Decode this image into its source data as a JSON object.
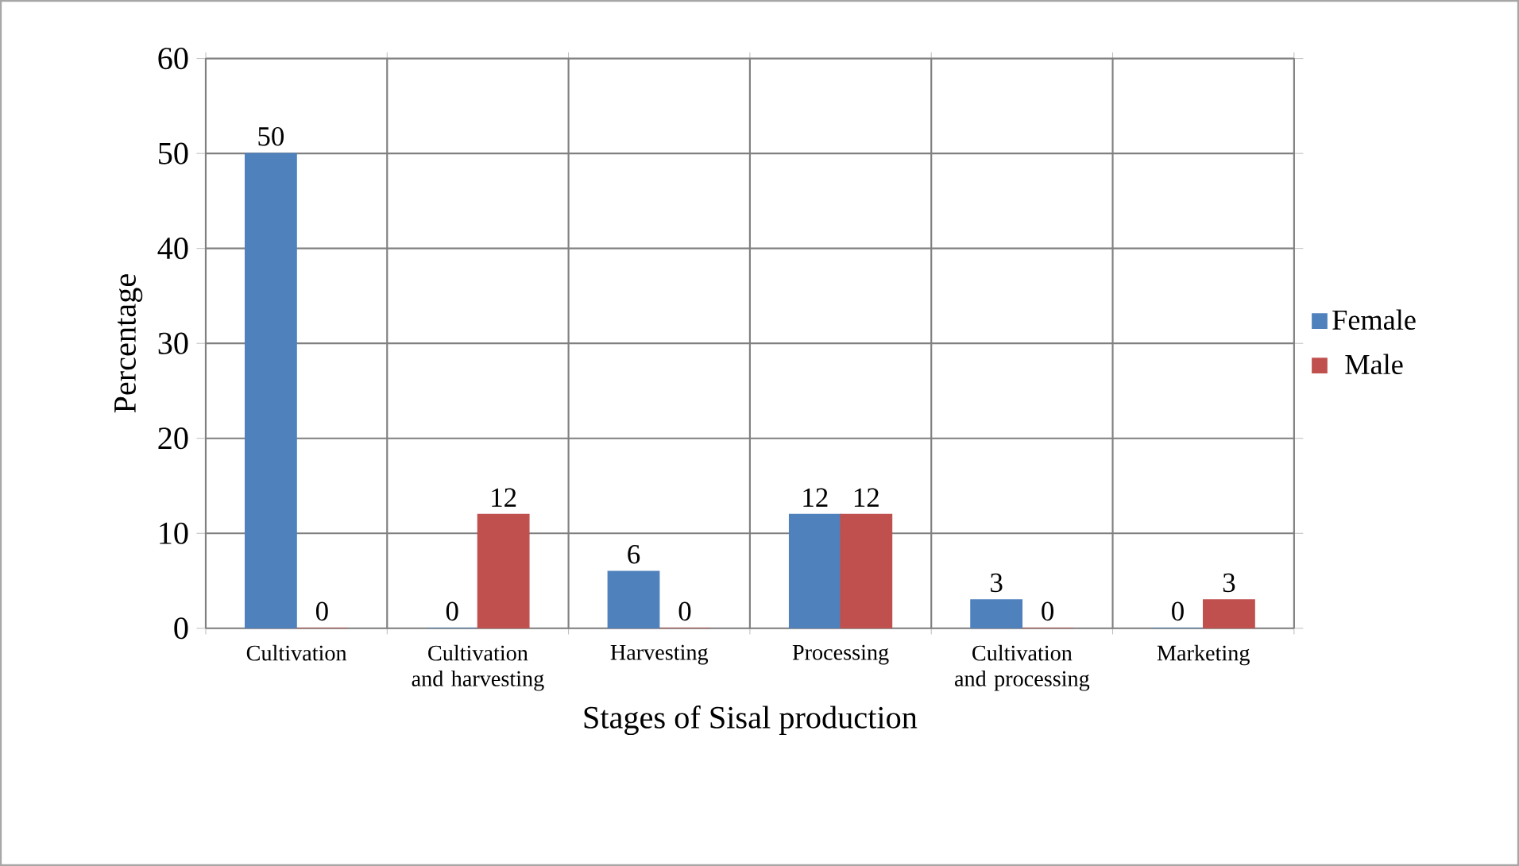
{
  "chart_data": {
    "type": "bar",
    "categories": [
      "Cultivation",
      "Cultivation and harvesting",
      "Harvesting",
      "Processing",
      "Cultivation and processing",
      "Marketing"
    ],
    "series": [
      {
        "name": "Female",
        "color": "#4f81bd",
        "values": [
          50,
          0,
          6,
          12,
          3,
          0
        ]
      },
      {
        "name": "Male",
        "color": "#c0504d",
        "values": [
          0,
          12,
          0,
          12,
          0,
          3
        ]
      }
    ],
    "xlabel": "Stages of Sisal production",
    "ylabel": "Percentage",
    "ylim": [
      0,
      60
    ],
    "yticks": [
      0,
      10,
      20,
      30,
      40,
      50,
      60
    ],
    "grid": true,
    "legend": "right",
    "data_labels": true
  }
}
